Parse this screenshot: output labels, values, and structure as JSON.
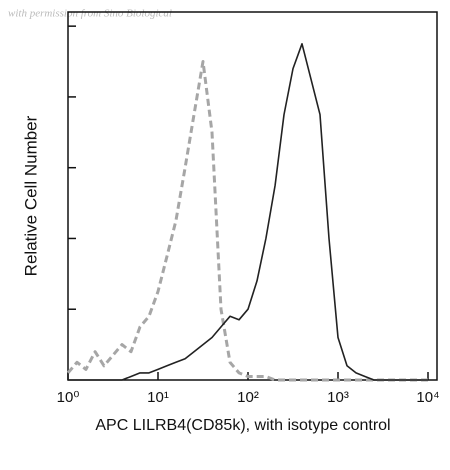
{
  "chart_data": {
    "type": "line",
    "watermark": "with permission from Sino Biological",
    "y_label": "Relative Cell Number",
    "x_label": "APC LILRB4(CD85k), with isotype control",
    "x_scale": "log",
    "x": [
      1,
      1.26,
      1.58,
      2,
      2.51,
      3.16,
      3.98,
      5.01,
      6.31,
      7.94,
      10,
      12.6,
      15.8,
      20,
      25.1,
      31.6,
      39.8,
      50.1,
      63.1,
      79.4,
      100,
      126,
      158,
      200,
      251,
      316,
      398,
      501,
      631,
      794,
      1000,
      1259,
      1585,
      1995,
      2512,
      3162,
      3981,
      5012,
      6310,
      7943,
      10000
    ],
    "series": [
      {
        "color": "#a6a6a6",
        "dash": true,
        "values": [
          2,
          5,
          3,
          8,
          4,
          7,
          10,
          8,
          15,
          18,
          25,
          35,
          45,
          60,
          75,
          90,
          70,
          20,
          5,
          2,
          1,
          1,
          1,
          0,
          0,
          0,
          0,
          0,
          0,
          0,
          0,
          0,
          0,
          0,
          0,
          0,
          0,
          0,
          0,
          0,
          0
        ]
      },
      {
        "color": "#222222",
        "dash": false,
        "values": [
          0,
          0,
          0,
          0,
          0,
          0,
          0,
          1,
          2,
          2,
          3,
          4,
          5,
          6,
          8,
          10,
          12,
          15,
          18,
          17,
          20,
          28,
          40,
          55,
          75,
          88,
          95,
          85,
          75,
          40,
          12,
          4,
          2,
          1,
          0,
          0,
          0,
          0,
          0,
          0,
          0
        ]
      }
    ],
    "xlim": [
      1,
      12589
    ],
    "xticks": [
      {
        "value": 1,
        "label": "10⁰"
      },
      {
        "value": 10,
        "label": "10¹"
      },
      {
        "value": 100,
        "label": "10²"
      },
      {
        "value": 1000,
        "label": "10³"
      },
      {
        "value": 10000,
        "label": "10⁴"
      }
    ],
    "ylim": [
      0,
      104
    ],
    "yticks": [
      20,
      40,
      60,
      80,
      100
    ]
  }
}
